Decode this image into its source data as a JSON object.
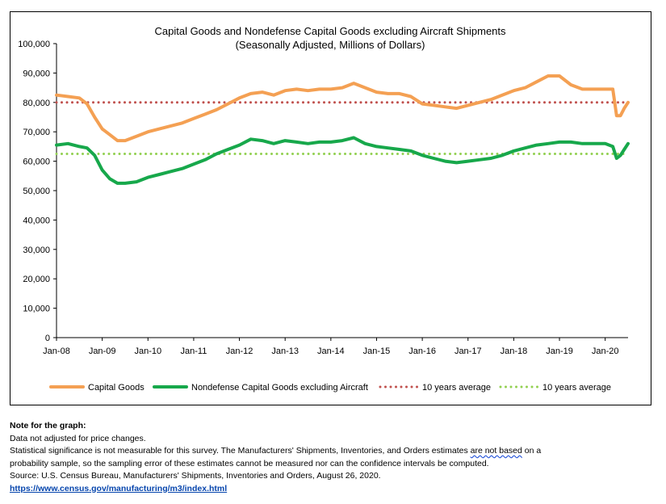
{
  "chart_data": {
    "type": "line",
    "title": "Capital Goods and Nondefense Capital Goods excluding Aircraft Shipments",
    "subtitle": "(Seasonally Adjusted, Millions of Dollars)",
    "ylim": [
      0,
      100000
    ],
    "y_ticks": [
      "0",
      "10,000",
      "20,000",
      "30,000",
      "40,000",
      "50,000",
      "60,000",
      "70,000",
      "80,000",
      "90,000",
      "100,000"
    ],
    "x_ticks": [
      "Jan-08",
      "Jan-09",
      "Jan-10",
      "Jan-11",
      "Jan-12",
      "Jan-13",
      "Jan-14",
      "Jan-15",
      "Jan-16",
      "Jan-17",
      "Jan-18",
      "Jan-19",
      "Jan-20"
    ],
    "x_range": [
      "Jan-08",
      "Jul-20"
    ],
    "legend_position": "bottom",
    "series": [
      {
        "name": "Capital Goods",
        "color": "#f4a053",
        "style": "solid",
        "points": [
          [
            "Jan-08",
            82500
          ],
          [
            "Apr-08",
            82000
          ],
          [
            "Jul-08",
            81500
          ],
          [
            "Sep-08",
            79500
          ],
          [
            "Nov-08",
            75000
          ],
          [
            "Jan-09",
            71000
          ],
          [
            "Mar-09",
            69000
          ],
          [
            "May-09",
            67000
          ],
          [
            "Jul-09",
            67000
          ],
          [
            "Oct-09",
            68500
          ],
          [
            "Jan-10",
            70000
          ],
          [
            "Apr-10",
            71000
          ],
          [
            "Jul-10",
            72000
          ],
          [
            "Oct-10",
            73000
          ],
          [
            "Jan-11",
            74500
          ],
          [
            "Apr-11",
            76000
          ],
          [
            "Jul-11",
            77500
          ],
          [
            "Oct-11",
            79500
          ],
          [
            "Jan-12",
            81500
          ],
          [
            "Apr-12",
            83000
          ],
          [
            "Jul-12",
            83500
          ],
          [
            "Oct-12",
            82500
          ],
          [
            "Jan-13",
            84000
          ],
          [
            "Apr-13",
            84500
          ],
          [
            "Jul-13",
            84000
          ],
          [
            "Oct-13",
            84500
          ],
          [
            "Jan-14",
            84500
          ],
          [
            "Apr-14",
            85000
          ],
          [
            "Jul-14",
            86500
          ],
          [
            "Oct-14",
            85000
          ],
          [
            "Jan-15",
            83500
          ],
          [
            "Apr-15",
            83000
          ],
          [
            "Jul-15",
            83000
          ],
          [
            "Oct-15",
            82000
          ],
          [
            "Jan-16",
            79500
          ],
          [
            "Apr-16",
            79000
          ],
          [
            "Jul-16",
            78500
          ],
          [
            "Oct-16",
            78000
          ],
          [
            "Jan-17",
            79000
          ],
          [
            "Apr-17",
            80000
          ],
          [
            "Jul-17",
            81000
          ],
          [
            "Oct-17",
            82500
          ],
          [
            "Jan-18",
            84000
          ],
          [
            "Apr-18",
            85000
          ],
          [
            "Jul-18",
            87000
          ],
          [
            "Oct-18",
            89000
          ],
          [
            "Jan-19",
            89000
          ],
          [
            "Apr-19",
            86000
          ],
          [
            "Jul-19",
            84500
          ],
          [
            "Oct-19",
            84500
          ],
          [
            "Jan-20",
            84500
          ],
          [
            "Mar-20",
            84500
          ],
          [
            "Apr-20",
            75500
          ],
          [
            "May-20",
            75500
          ],
          [
            "Jun-20",
            78000
          ],
          [
            "Jul-20",
            80000
          ]
        ]
      },
      {
        "name": "Nondefense Capital Goods excluding Aircraft",
        "color": "#17a84b",
        "style": "solid",
        "points": [
          [
            "Jan-08",
            65500
          ],
          [
            "Apr-08",
            66000
          ],
          [
            "Jul-08",
            65000
          ],
          [
            "Sep-08",
            64500
          ],
          [
            "Nov-08",
            62000
          ],
          [
            "Jan-09",
            57000
          ],
          [
            "Mar-09",
            54000
          ],
          [
            "May-09",
            52500
          ],
          [
            "Jul-09",
            52500
          ],
          [
            "Oct-09",
            53000
          ],
          [
            "Jan-10",
            54500
          ],
          [
            "Apr-10",
            55500
          ],
          [
            "Jul-10",
            56500
          ],
          [
            "Oct-10",
            57500
          ],
          [
            "Jan-11",
            59000
          ],
          [
            "Apr-11",
            60500
          ],
          [
            "Jul-11",
            62500
          ],
          [
            "Oct-11",
            64000
          ],
          [
            "Jan-12",
            65500
          ],
          [
            "Apr-12",
            67500
          ],
          [
            "Jul-12",
            67000
          ],
          [
            "Oct-12",
            66000
          ],
          [
            "Jan-13",
            67000
          ],
          [
            "Apr-13",
            66500
          ],
          [
            "Jul-13",
            66000
          ],
          [
            "Oct-13",
            66500
          ],
          [
            "Jan-14",
            66500
          ],
          [
            "Apr-14",
            67000
          ],
          [
            "Jul-14",
            68000
          ],
          [
            "Oct-14",
            66000
          ],
          [
            "Jan-15",
            65000
          ],
          [
            "Apr-15",
            64500
          ],
          [
            "Jul-15",
            64000
          ],
          [
            "Oct-15",
            63500
          ],
          [
            "Jan-16",
            62000
          ],
          [
            "Apr-16",
            61000
          ],
          [
            "Jul-16",
            60000
          ],
          [
            "Oct-16",
            59500
          ],
          [
            "Jan-17",
            60000
          ],
          [
            "Apr-17",
            60500
          ],
          [
            "Jul-17",
            61000
          ],
          [
            "Oct-17",
            62000
          ],
          [
            "Jan-18",
            63500
          ],
          [
            "Apr-18",
            64500
          ],
          [
            "Jul-18",
            65500
          ],
          [
            "Oct-18",
            66000
          ],
          [
            "Jan-19",
            66500
          ],
          [
            "Apr-19",
            66500
          ],
          [
            "Jul-19",
            66000
          ],
          [
            "Oct-19",
            66000
          ],
          [
            "Jan-20",
            66000
          ],
          [
            "Mar-20",
            65000
          ],
          [
            "Apr-20",
            61000
          ],
          [
            "May-20",
            62000
          ],
          [
            "Jun-20",
            64000
          ],
          [
            "Jul-20",
            66000
          ]
        ]
      },
      {
        "name": "10 years average",
        "color": "#c0504d",
        "style": "dotted",
        "points": [
          [
            "Jan-08",
            80000
          ],
          [
            "Jul-20",
            80000
          ]
        ]
      },
      {
        "name": "10 years average",
        "color": "#92d050",
        "style": "dotted",
        "points": [
          [
            "Jan-08",
            62500
          ],
          [
            "Jul-20",
            62500
          ]
        ]
      }
    ]
  },
  "notes": {
    "heading": "Note for the graph:",
    "line1": "Data not adjusted for price changes.",
    "line2_pre": "Statistical significance is not measurable for this survey.  The Manufacturers' Shipments, Inventories, and Orders estimates ",
    "line2_wavy": "are not based",
    "line2_post": " on a",
    "line3": "probability sample, so the sampling error of these estimates cannot be measured nor can the confidence intervals be computed.",
    "source": "Source: U.S. Census Bureau, Manufacturers' Shipments, Inventories and Orders, August 26, 2020.",
    "link": "https://www.census.gov/manufacturing/m3/index.html"
  }
}
